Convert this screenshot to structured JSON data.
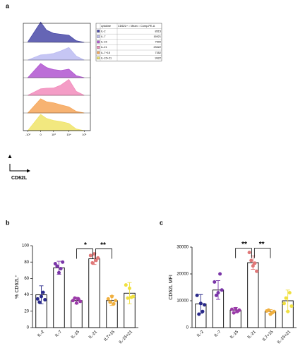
{
  "chart_data": [
    {
      "type": "ridgeline",
      "panel_label": "a",
      "xlabel": "CD62L",
      "x": [
        -1000,
        0,
        300,
        1000,
        3000,
        10000,
        30000,
        100000
      ],
      "xlim": [
        -2000,
        250000
      ],
      "xticks": [
        {
          "value": -1000,
          "label": "-10³"
        },
        {
          "value": 0,
          "label": "0"
        },
        {
          "value": 1000,
          "label": "10³"
        },
        {
          "value": 10000,
          "label": "10⁴"
        },
        {
          "value": 100000,
          "label": "10⁵"
        }
      ],
      "ylim": [
        0,
        100
      ],
      "table_columns": [
        "cytokine",
        "CD62L+ :: Mean :: Comp-PE-A"
      ],
      "series": [
        {
          "name": "IL-2",
          "color": "#4a4aa8",
          "mean": 8515,
          "values": [
            2,
            100,
            60,
            45,
            40,
            35,
            8,
            0
          ]
        },
        {
          "name": "IL-7",
          "color": "#bcbcf2",
          "mean": 16921,
          "values": [
            0,
            25,
            28,
            32,
            45,
            62,
            20,
            0
          ]
        },
        {
          "name": "IL-15",
          "color": "#b055d0",
          "mean": 7500,
          "values": [
            0,
            70,
            50,
            40,
            35,
            42,
            10,
            0
          ]
        },
        {
          "name": "IL-21",
          "color": "#f28cbc",
          "mean": 23322,
          "values": [
            0,
            32,
            35,
            36,
            50,
            78,
            20,
            0
          ]
        },
        {
          "name": "IL-7+15",
          "color": "#f6a659",
          "mean": 7352,
          "values": [
            0,
            70,
            55,
            50,
            40,
            30,
            8,
            0
          ]
        },
        {
          "name": "IL-15+21",
          "color": "#f0e468",
          "mean": 9922,
          "values": [
            0,
            80,
            60,
            50,
            45,
            35,
            8,
            0
          ]
        }
      ]
    },
    {
      "type": "bar",
      "panel_label": "b",
      "ylabel": "% CD62L⁺",
      "categories": [
        "IL-2",
        "IL-7",
        "IL-15",
        "IL-21",
        "IL7+15",
        "IL-15+21"
      ],
      "colors": [
        "#2a2a8a",
        "#7a35a8",
        "#9a3aa8",
        "#e07878",
        "#f0b040",
        "#f0e040"
      ],
      "values": [
        40,
        73,
        33,
        84,
        33,
        42
      ],
      "errors": [
        11,
        8,
        4,
        7,
        6,
        13
      ],
      "points": [
        [
          35,
          43,
          38,
          31,
          34
        ],
        [
          78,
          72,
          67,
          75,
          80
        ],
        [
          33,
          35,
          30,
          36,
          32
        ],
        [
          88,
          82,
          90,
          79,
          85
        ],
        [
          35,
          29,
          38,
          31,
          33
        ],
        [
          52,
          37,
          48,
          36,
          38
        ]
      ],
      "ylim": [
        0,
        100
      ],
      "yticks": [
        0,
        20,
        40,
        60,
        80,
        100
      ],
      "annotations": [
        "*",
        "**"
      ]
    },
    {
      "type": "bar",
      "panel_label": "c",
      "ylabel": "CD62L MFI",
      "categories": [
        "IL-2",
        "IL-7",
        "IL-15",
        "IL-21",
        "IL7+15",
        "IL-15+21"
      ],
      "colors": [
        "#2a2a8a",
        "#7a35a8",
        "#9a3aa8",
        "#e07878",
        "#f0b040",
        "#f0e040"
      ],
      "values": [
        8800,
        14000,
        6500,
        24200,
        6000,
        10000
      ],
      "errors": [
        3500,
        3500,
        1000,
        2500,
        700,
        4000
      ],
      "points": [
        [
          12000,
          6000,
          9000,
          5000,
          8500
        ],
        [
          17000,
          20000,
          13000,
          12000,
          14000
        ],
        [
          6800,
          6000,
          7000,
          5500,
          6500
        ],
        [
          28000,
          24000,
          23000,
          25000,
          21000
        ],
        [
          6200,
          5500,
          5000,
          6500,
          6000
        ],
        [
          9000,
          13000,
          6000,
          11000,
          8000
        ]
      ],
      "ylim": [
        0,
        30000
      ],
      "yticks": [
        0,
        10000,
        20000,
        30000
      ],
      "annotations": [
        "**",
        "**"
      ]
    }
  ]
}
